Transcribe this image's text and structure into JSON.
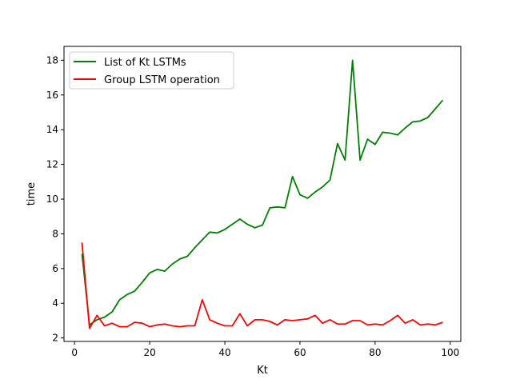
{
  "chart_data": {
    "type": "line",
    "title": "",
    "xlabel": "Kt",
    "ylabel": "time",
    "xlim": [
      -2.8,
      102.8
    ],
    "ylim": [
      1.8,
      18.8
    ],
    "xticks": [
      0,
      20,
      40,
      60,
      80,
      100
    ],
    "yticks": [
      2,
      4,
      6,
      8,
      10,
      12,
      14,
      16,
      18
    ],
    "grid": false,
    "legend_position": "upper-left",
    "x": [
      2,
      4,
      6,
      8,
      10,
      12,
      14,
      16,
      18,
      20,
      22,
      24,
      26,
      28,
      30,
      32,
      34,
      36,
      38,
      40,
      42,
      44,
      46,
      48,
      50,
      52,
      54,
      56,
      58,
      60,
      62,
      64,
      66,
      68,
      70,
      72,
      74,
      76,
      78,
      80,
      82,
      84,
      86,
      88,
      90,
      92,
      94,
      96,
      98
    ],
    "series": [
      {
        "name": "List of Kt LSTMs",
        "color": "#008000",
        "values": [
          6.85,
          2.75,
          3.05,
          3.2,
          3.5,
          4.2,
          4.5,
          4.7,
          5.2,
          5.75,
          5.95,
          5.85,
          6.25,
          6.55,
          6.7,
          7.2,
          7.65,
          8.1,
          8.05,
          8.25,
          8.55,
          8.85,
          8.55,
          8.35,
          8.5,
          9.5,
          9.55,
          9.5,
          11.3,
          10.25,
          10.05,
          10.4,
          10.7,
          11.1,
          13.2,
          12.25,
          18.0,
          12.25,
          13.45,
          13.15,
          13.85,
          13.8,
          13.7,
          14.1,
          14.45,
          14.5,
          14.7,
          15.2,
          15.7
        ]
      },
      {
        "name": "Group LSTM operation",
        "color": "#ff0000",
        "values": [
          7.5,
          2.55,
          3.3,
          2.7,
          2.85,
          2.65,
          2.65,
          2.9,
          2.85,
          2.65,
          2.75,
          2.8,
          2.7,
          2.65,
          2.7,
          2.7,
          4.2,
          3.05,
          2.85,
          2.7,
          2.7,
          3.4,
          2.7,
          3.05,
          3.05,
          2.95,
          2.75,
          3.05,
          3.0,
          3.05,
          3.1,
          3.3,
          2.85,
          3.05,
          2.8,
          2.8,
          3.0,
          3.0,
          2.75,
          2.8,
          2.75,
          3.0,
          3.3,
          2.85,
          3.05,
          2.75,
          2.8,
          2.75,
          2.9
        ]
      }
    ]
  }
}
